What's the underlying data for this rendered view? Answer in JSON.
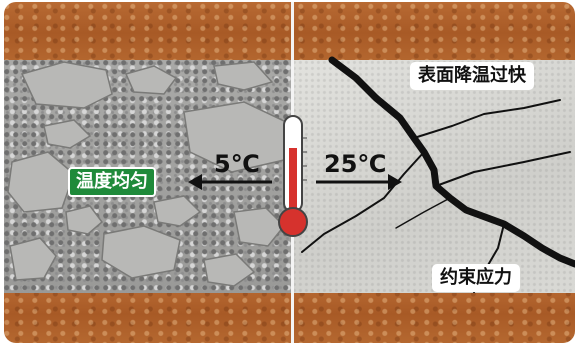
{
  "labels": {
    "uniform_temp": "温度均匀",
    "temp_left": "5℃",
    "temp_right": "25℃",
    "fast_surface_cooling": "表面降温过快",
    "restraint_stress": "约束应力"
  },
  "colors": {
    "soil": "#a85a26",
    "gravel": "#9a9a98",
    "concrete": "#d6d6d2",
    "tag_green": "#1f8a3a",
    "thermometer_red": "#d6322d",
    "crack": "#111111"
  },
  "icons": {
    "thermometer": "thermometer-icon",
    "arrow_left": "arrow-left-icon",
    "arrow_right": "arrow-right-icon"
  }
}
